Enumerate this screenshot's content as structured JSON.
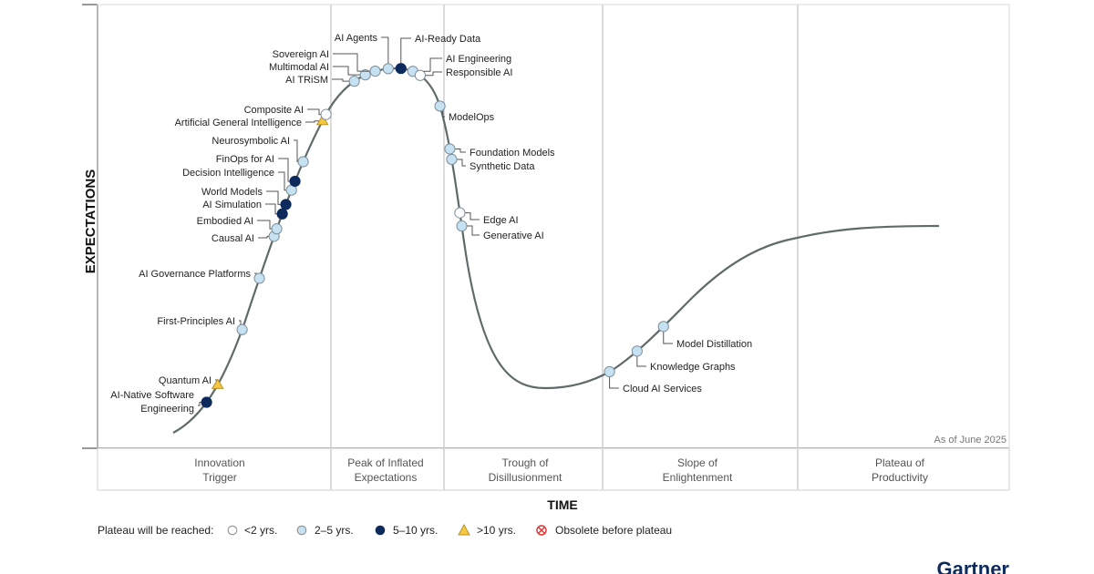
{
  "chart_data": {
    "type": "hype-cycle",
    "xlabel": "TIME",
    "ylabel": "EXPECTATIONS",
    "as_of": "As of June 2025",
    "phases": [
      {
        "line1": "Innovation",
        "line2": "Trigger"
      },
      {
        "line1": "Peak of Inflated",
        "line2": "Expectations"
      },
      {
        "line1": "Trough of",
        "line2": "Disillusionment"
      },
      {
        "line1": "Slope of",
        "line2": "Enlightenment"
      },
      {
        "line1": "Plateau of",
        "line2": "Productivity"
      }
    ],
    "legend": {
      "title": "Plateau will be reached:",
      "items": [
        {
          "key": "lt2",
          "label": "<2 yrs.",
          "color": "#ffffff"
        },
        {
          "key": "2to5",
          "label": "2–5 yrs.",
          "color": "#c5e1f2"
        },
        {
          "key": "5to10",
          "label": "5–10 yrs.",
          "color": "#0d2a5c"
        },
        {
          "key": "gt10",
          "label": ">10 yrs.",
          "color": "#f5c842"
        },
        {
          "key": "obsolete",
          "label": "Obsolete before plateau",
          "color": "#e03030"
        }
      ]
    },
    "technologies": [
      {
        "name": "AI-Native Software Engineering",
        "lines": [
          "AI-Native Software",
          "Engineering"
        ],
        "plateau": "5to10"
      },
      {
        "name": "Quantum AI",
        "plateau": "gt10"
      },
      {
        "name": "First-Principles AI",
        "plateau": "2to5"
      },
      {
        "name": "AI Governance Platforms",
        "plateau": "2to5"
      },
      {
        "name": "Causal AI",
        "plateau": "2to5"
      },
      {
        "name": "Embodied AI",
        "plateau": "2to5"
      },
      {
        "name": "AI Simulation",
        "plateau": "5to10"
      },
      {
        "name": "World Models",
        "plateau": "5to10"
      },
      {
        "name": "Decision Intelligence",
        "plateau": "2to5"
      },
      {
        "name": "FinOps for AI",
        "plateau": "5to10"
      },
      {
        "name": "Neurosymbolic AI",
        "plateau": "2to5"
      },
      {
        "name": "Artificial General Intelligence",
        "plateau": "gt10"
      },
      {
        "name": "Composite AI",
        "plateau": "lt2"
      },
      {
        "name": "AI TRiSM",
        "plateau": "2to5"
      },
      {
        "name": "Multimodal AI",
        "plateau": "2to5"
      },
      {
        "name": "Sovereign AI",
        "plateau": "2to5"
      },
      {
        "name": "AI Agents",
        "plateau": "2to5"
      },
      {
        "name": "AI-Ready Data",
        "plateau": "5to10"
      },
      {
        "name": "AI Engineering",
        "plateau": "2to5"
      },
      {
        "name": "Responsible AI",
        "plateau": "lt2"
      },
      {
        "name": "ModelOps",
        "plateau": "2to5"
      },
      {
        "name": "Foundation Models",
        "plateau": "2to5"
      },
      {
        "name": "Synthetic Data",
        "plateau": "2to5"
      },
      {
        "name": "Edge AI",
        "plateau": "lt2"
      },
      {
        "name": "Generative AI",
        "plateau": "2to5"
      },
      {
        "name": "Cloud AI Services",
        "plateau": "2to5"
      },
      {
        "name": "Knowledge Graphs",
        "plateau": "2to5"
      },
      {
        "name": "Model Distillation",
        "plateau": "2to5"
      }
    ]
  },
  "brand": "Gartner"
}
